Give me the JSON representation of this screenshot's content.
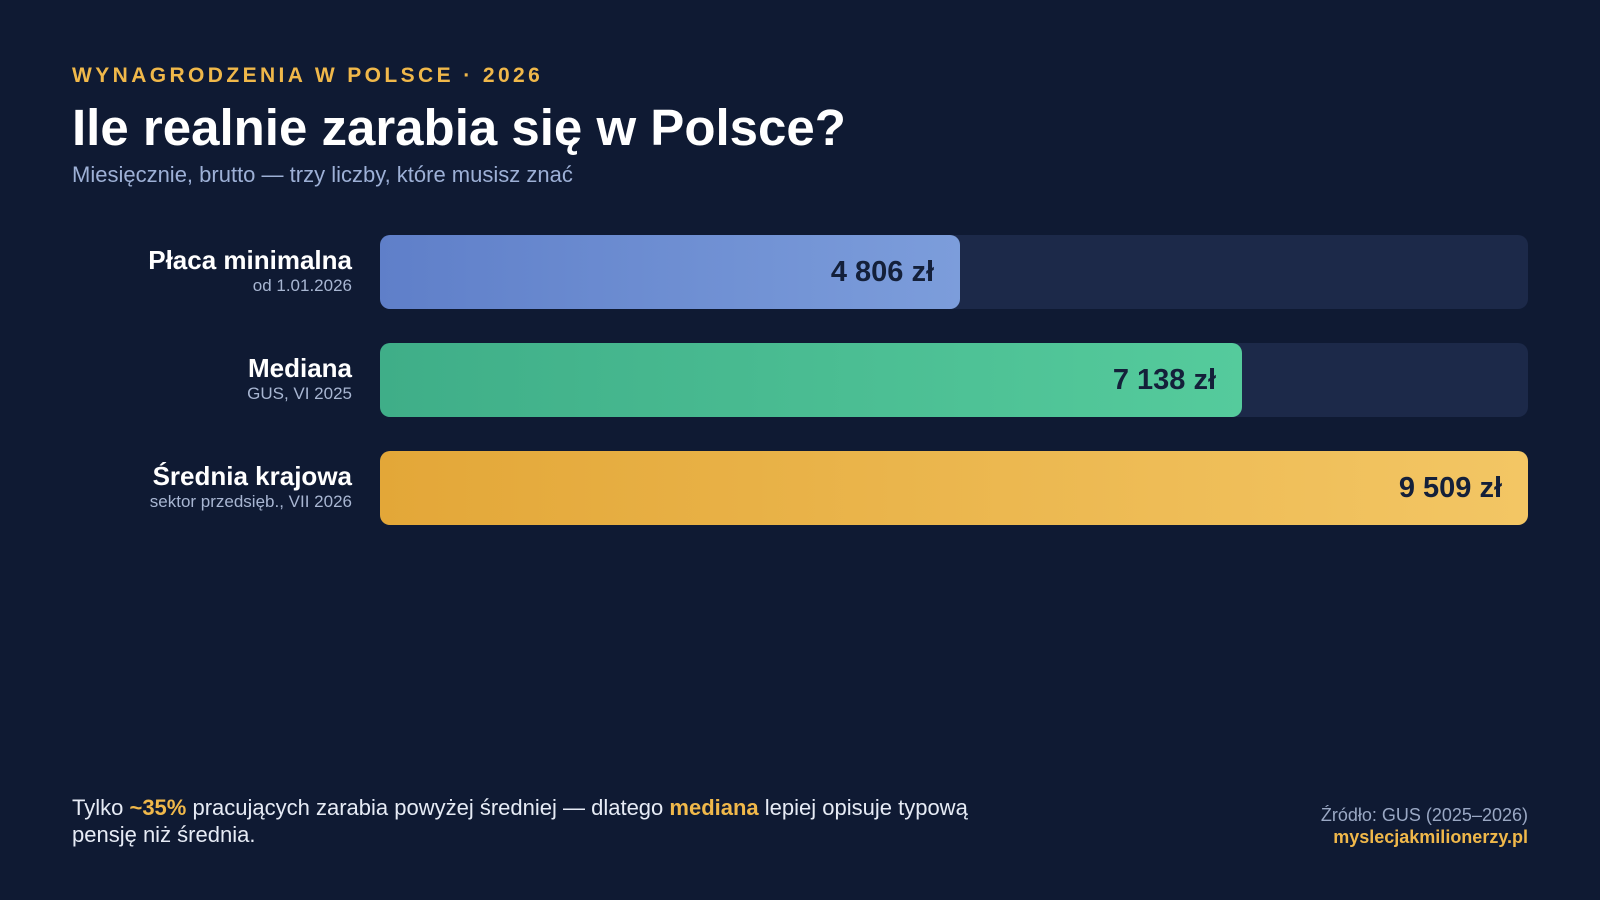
{
  "header": {
    "eyebrow": "WYNAGRODZENIA W POLSCE · 2026",
    "title": "Ile realnie zarabia się w Polsce?",
    "subtitle": "Miesięcznie, brutto — trzy liczby, które musisz znać"
  },
  "chart_data": {
    "type": "bar",
    "orientation": "horizontal",
    "title": "Ile realnie zarabia się w Polsce?",
    "categories": [
      "Płaca minimalna",
      "Mediana",
      "Średnia krajowa"
    ],
    "notes": [
      "od 1.01.2026",
      "GUS, VI 2025",
      "sektor przedsięb., VII 2026"
    ],
    "values": [
      4806,
      7138,
      9509
    ],
    "value_labels": [
      "4 806 zł",
      "7 138 zł",
      "9 509 zł"
    ],
    "xlim": [
      0,
      9509
    ],
    "grid": false,
    "colors": [
      [
        "#5f7fc9",
        "#7c9ddb"
      ],
      [
        "#3fae88",
        "#55cb9c"
      ],
      [
        "#e3a738",
        "#f3c664"
      ]
    ]
  },
  "footer": {
    "note_prefix": "Tylko ",
    "note_pct": "~35%",
    "note_mid": " pracujących zarabia powyżej średniej — dlatego ",
    "note_median": "mediana",
    "note_suffix": " lepiej opisuje typową pensję niż średnia.",
    "source": "Źródło: GUS (2025–2026)",
    "site": "myslecjakmilionerzy.pl"
  }
}
